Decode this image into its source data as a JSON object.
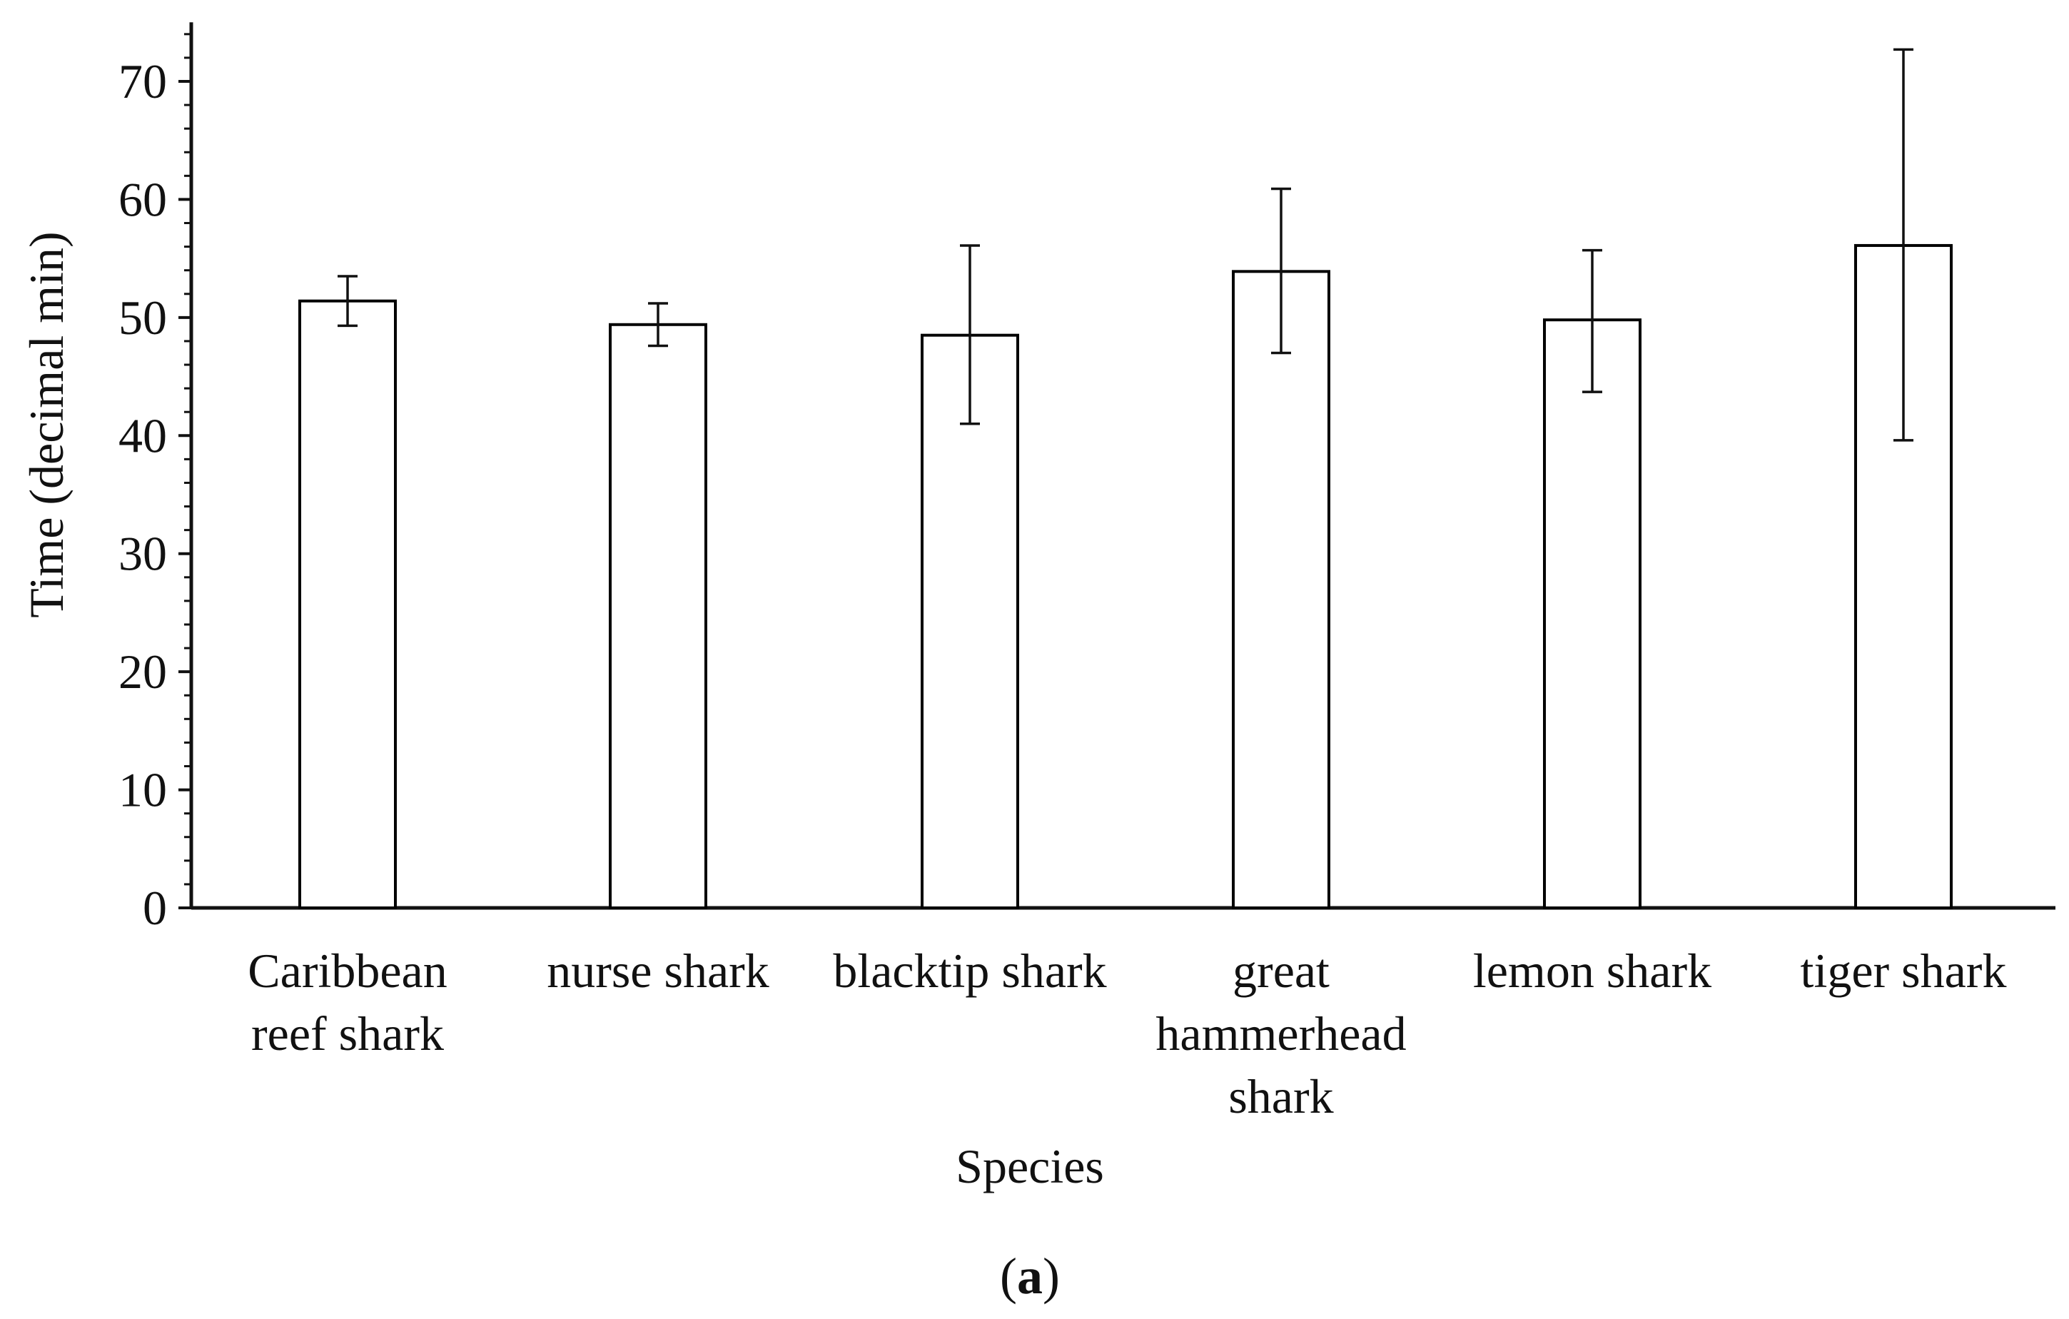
{
  "chart_data": {
    "type": "bar",
    "title": "",
    "xlabel": "Species",
    "ylabel": "Time (decimal min)",
    "ylim": [
      0,
      75
    ],
    "yticks": [
      "0",
      "10",
      "20",
      "30",
      "40",
      "50",
      "60",
      "70"
    ],
    "grid": false,
    "categories": [
      [
        "Caribbean",
        "reef shark"
      ],
      [
        "nurse shark"
      ],
      [
        "blacktip shark"
      ],
      [
        "great",
        "hammerhead",
        "shark"
      ],
      [
        "lemon shark"
      ],
      [
        "tiger shark"
      ]
    ],
    "values": [
      51.4,
      49.4,
      48.5,
      53.9,
      49.8,
      56.1
    ],
    "error_bars": [
      {
        "low": 49.3,
        "high": 53.5
      },
      {
        "low": 47.6,
        "high": 51.2
      },
      {
        "low": 41.0,
        "high": 56.1
      },
      {
        "low": 47.0,
        "high": 60.9
      },
      {
        "low": 43.7,
        "high": 55.7
      },
      {
        "low": 39.6,
        "high": 72.7
      }
    ],
    "bar_fill": "#ffffff",
    "bar_stroke": "#000000"
  },
  "caption": {
    "open": "(",
    "letter": "a",
    "close": ")"
  }
}
